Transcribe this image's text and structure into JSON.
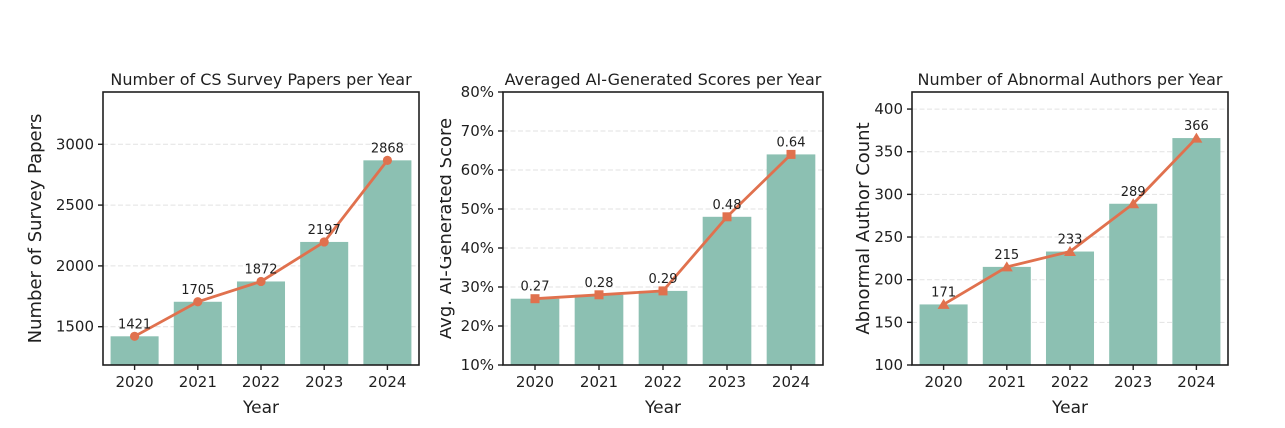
{
  "figure": {
    "background": "#ffffff",
    "text_color": "#1f1f1f",
    "spine_color": "#1f1f1f",
    "grid_color": "#e2e2e2",
    "bar_color": "#8cc0b2",
    "line_color": "#e0714e"
  },
  "chart_data": [
    {
      "type": "bar",
      "line_overlay": true,
      "marker": "circle",
      "title": "Number of CS Survey Papers per Year",
      "xlabel": "Year",
      "ylabel": "Number of Survey Papers",
      "categories": [
        "2020",
        "2021",
        "2022",
        "2023",
        "2024"
      ],
      "values": [
        1421,
        1705,
        1872,
        2197,
        2868
      ],
      "value_labels": [
        "1421",
        "1705",
        "1872",
        "2197",
        "2868"
      ],
      "ylim": [
        1185,
        3430
      ],
      "yticks": [
        1500,
        2000,
        2500,
        3000
      ],
      "ytick_labels": [
        "1500",
        "2000",
        "2500",
        "3000"
      ],
      "grid": true,
      "legend": "none",
      "bar_color": "#8cc0b2",
      "line_color": "#e0714e"
    },
    {
      "type": "bar",
      "line_overlay": true,
      "marker": "square",
      "title": "Averaged AI-Generated Scores per Year",
      "xlabel": "Year",
      "ylabel": "Avg. AI-Generated Score",
      "categories": [
        "2020",
        "2021",
        "2022",
        "2023",
        "2024"
      ],
      "values": [
        0.27,
        0.28,
        0.29,
        0.48,
        0.64
      ],
      "value_labels": [
        "0.27",
        "0.28",
        "0.29",
        "0.48",
        "0.64"
      ],
      "ylim": [
        0.1,
        0.8
      ],
      "yticks": [
        0.1,
        0.2,
        0.3,
        0.4,
        0.5,
        0.6,
        0.7,
        0.8
      ],
      "ytick_labels": [
        "10%",
        "20%",
        "30%",
        "40%",
        "50%",
        "60%",
        "70%",
        "80%"
      ],
      "grid": true,
      "legend": "none",
      "bar_color": "#8cc0b2",
      "line_color": "#e0714e"
    },
    {
      "type": "bar",
      "line_overlay": true,
      "marker": "triangle",
      "title": "Number of Abnormal Authors per Year",
      "xlabel": "Year",
      "ylabel": "Abnormal Author Count",
      "categories": [
        "2020",
        "2021",
        "2022",
        "2023",
        "2024"
      ],
      "values": [
        171,
        215,
        233,
        289,
        366
      ],
      "value_labels": [
        "171",
        "215",
        "233",
        "289",
        "366"
      ],
      "ylim": [
        100,
        420
      ],
      "yticks": [
        100,
        150,
        200,
        250,
        300,
        350,
        400
      ],
      "ytick_labels": [
        "100",
        "150",
        "200",
        "250",
        "300",
        "350",
        "400"
      ],
      "grid": true,
      "legend": "none",
      "bar_color": "#8cc0b2",
      "line_color": "#e0714e"
    }
  ]
}
